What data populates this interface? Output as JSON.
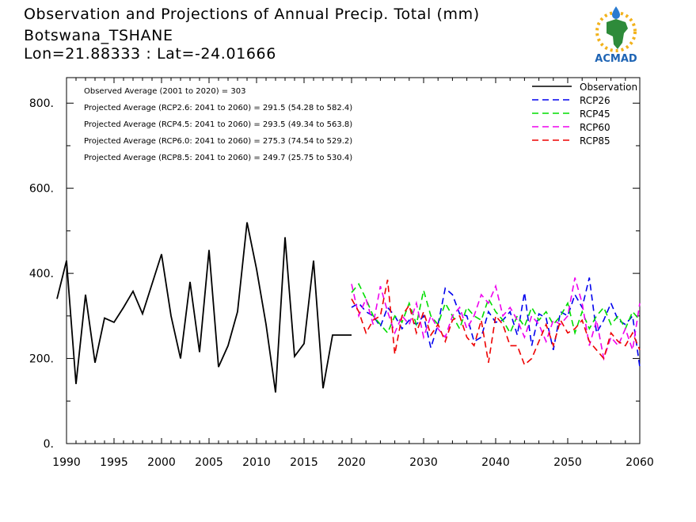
{
  "header": {
    "line1": "Observation and Projections of Annual Precip. Total (mm)",
    "line2": "Botswana_TSHANE",
    "line3": "Lon=21.88333 : Lat=-24.01666",
    "logo_text": "ACMAD"
  },
  "colors": {
    "observation": "#000000",
    "rcp26": "#0000ee",
    "rcp45": "#00dd00",
    "rcp60": "#ee00ee",
    "rcp85": "#ee0000"
  },
  "chart_data": {
    "type": "line",
    "title": "Observation and Projections of Annual Precip. Total (mm)",
    "xlabel": "",
    "ylabel": "",
    "xlim": [
      1990,
      2060
    ],
    "ylim": [
      0,
      860
    ],
    "x_ticks": [
      1990,
      1995,
      2000,
      2005,
      2010,
      2015,
      2020,
      2030,
      2040,
      2050,
      2060
    ],
    "y_ticks": [
      {
        "value": 0,
        "label": "0."
      },
      {
        "value": 200,
        "label": "200."
      },
      {
        "value": 400,
        "label": "400."
      },
      {
        "value": 600,
        "label": "600."
      },
      {
        "value": 800,
        "label": "800."
      }
    ],
    "stats": [
      "Observed Average (2001 to 2020) = 303",
      "Projected Average (RCP2.6: 2041 to 2060) = 291.5 (54.28 to 582.4)",
      "Projected Average (RCP4.5: 2041 to 2060) = 293.5 (49.34 to 563.8)",
      "Projected Average (RCP6.0: 2041 to 2060) = 275.3 (74.54 to 529.2)",
      "Projected Average (RCP8.5: 2041 to 2060) = 249.7 (25.75 to 530.4)"
    ],
    "legend_position": "top-right",
    "series": [
      {
        "name": "Observation",
        "key": "observation",
        "dash": "solid",
        "x": [
          1989,
          1990,
          1991,
          1992,
          1993,
          1994,
          1995,
          1996,
          1997,
          1998,
          1999,
          2000,
          2001,
          2002,
          2003,
          2004,
          2005,
          2006,
          2007,
          2008,
          2009,
          2010,
          2011,
          2012,
          2013,
          2014,
          2015,
          2016,
          2017,
          2018,
          2019,
          2020
        ],
        "y": [
          340,
          430,
          140,
          350,
          190,
          295,
          285,
          320,
          358,
          305,
          375,
          445,
          300,
          200,
          380,
          215,
          455,
          180,
          230,
          310,
          520,
          410,
          280,
          120,
          485,
          205,
          235,
          430,
          130,
          255,
          255,
          255
        ]
      },
      {
        "name": "RCP26",
        "key": "rcp26",
        "dash": "8,5",
        "x": [
          2020,
          2021,
          2022,
          2023,
          2024,
          2025,
          2026,
          2027,
          2028,
          2029,
          2030,
          2031,
          2032,
          2033,
          2034,
          2035,
          2036,
          2037,
          2038,
          2039,
          2040,
          2041,
          2042,
          2043,
          2044,
          2045,
          2046,
          2047,
          2048,
          2049,
          2050,
          2051,
          2052,
          2053,
          2054,
          2055,
          2056,
          2057,
          2058,
          2059,
          2060
        ],
        "y": [
          320,
          330,
          310,
          300,
          275,
          320,
          300,
          270,
          290,
          280,
          300,
          225,
          280,
          365,
          350,
          305,
          300,
          240,
          250,
          310,
          285,
          290,
          310,
          255,
          355,
          230,
          305,
          295,
          220,
          310,
          300,
          350,
          320,
          390,
          260,
          290,
          330,
          290,
          280,
          300,
          180
        ]
      },
      {
        "name": "RCP45",
        "key": "rcp45",
        "dash": "8,5",
        "x": [
          2020,
          2021,
          2022,
          2023,
          2024,
          2025,
          2026,
          2027,
          2028,
          2029,
          2030,
          2031,
          2032,
          2033,
          2034,
          2035,
          2036,
          2037,
          2038,
          2039,
          2040,
          2041,
          2042,
          2043,
          2044,
          2045,
          2046,
          2047,
          2048,
          2049,
          2050,
          2051,
          2052,
          2053,
          2054,
          2055,
          2056,
          2057,
          2058,
          2059,
          2060
        ],
        "y": [
          355,
          375,
          340,
          300,
          280,
          260,
          300,
          285,
          330,
          280,
          360,
          300,
          280,
          330,
          300,
          270,
          320,
          300,
          290,
          340,
          310,
          290,
          260,
          300,
          275,
          320,
          290,
          310,
          280,
          300,
          330,
          260,
          310,
          270,
          300,
          320,
          280,
          300,
          270,
          310,
          290
        ]
      },
      {
        "name": "RCP60",
        "key": "rcp60",
        "dash": "8,5",
        "x": [
          2020,
          2021,
          2022,
          2023,
          2024,
          2025,
          2026,
          2027,
          2028,
          2029,
          2030,
          2031,
          2032,
          2033,
          2034,
          2035,
          2036,
          2037,
          2038,
          2039,
          2040,
          2041,
          2042,
          2043,
          2044,
          2045,
          2046,
          2047,
          2048,
          2049,
          2050,
          2051,
          2052,
          2053,
          2054,
          2055,
          2056,
          2057,
          2058,
          2059,
          2060
        ],
        "y": [
          375,
          300,
          340,
          280,
          370,
          310,
          260,
          300,
          280,
          330,
          250,
          300,
          270,
          250,
          300,
          320,
          270,
          300,
          350,
          330,
          370,
          300,
          320,
          290,
          250,
          300,
          280,
          240,
          290,
          280,
          300,
          390,
          330,
          230,
          290,
          200,
          250,
          230,
          270,
          220,
          330
        ]
      },
      {
        "name": "RCP85",
        "key": "rcp85",
        "dash": "8,5",
        "x": [
          2020,
          2021,
          2022,
          2023,
          2024,
          2025,
          2026,
          2027,
          2028,
          2029,
          2030,
          2031,
          2032,
          2033,
          2034,
          2035,
          2036,
          2037,
          2038,
          2039,
          2040,
          2041,
          2042,
          2043,
          2044,
          2045,
          2046,
          2047,
          2048,
          2049,
          2050,
          2051,
          2052,
          2053,
          2054,
          2055,
          2056,
          2057,
          2058,
          2059,
          2060
        ],
        "y": [
          340,
          310,
          260,
          290,
          300,
          385,
          210,
          300,
          325,
          260,
          310,
          255,
          280,
          240,
          290,
          300,
          250,
          230,
          290,
          190,
          300,
          280,
          230,
          230,
          185,
          200,
          240,
          280,
          230,
          290,
          260,
          270,
          290,
          240,
          220,
          200,
          260,
          240,
          230,
          260,
          220
        ]
      }
    ]
  }
}
